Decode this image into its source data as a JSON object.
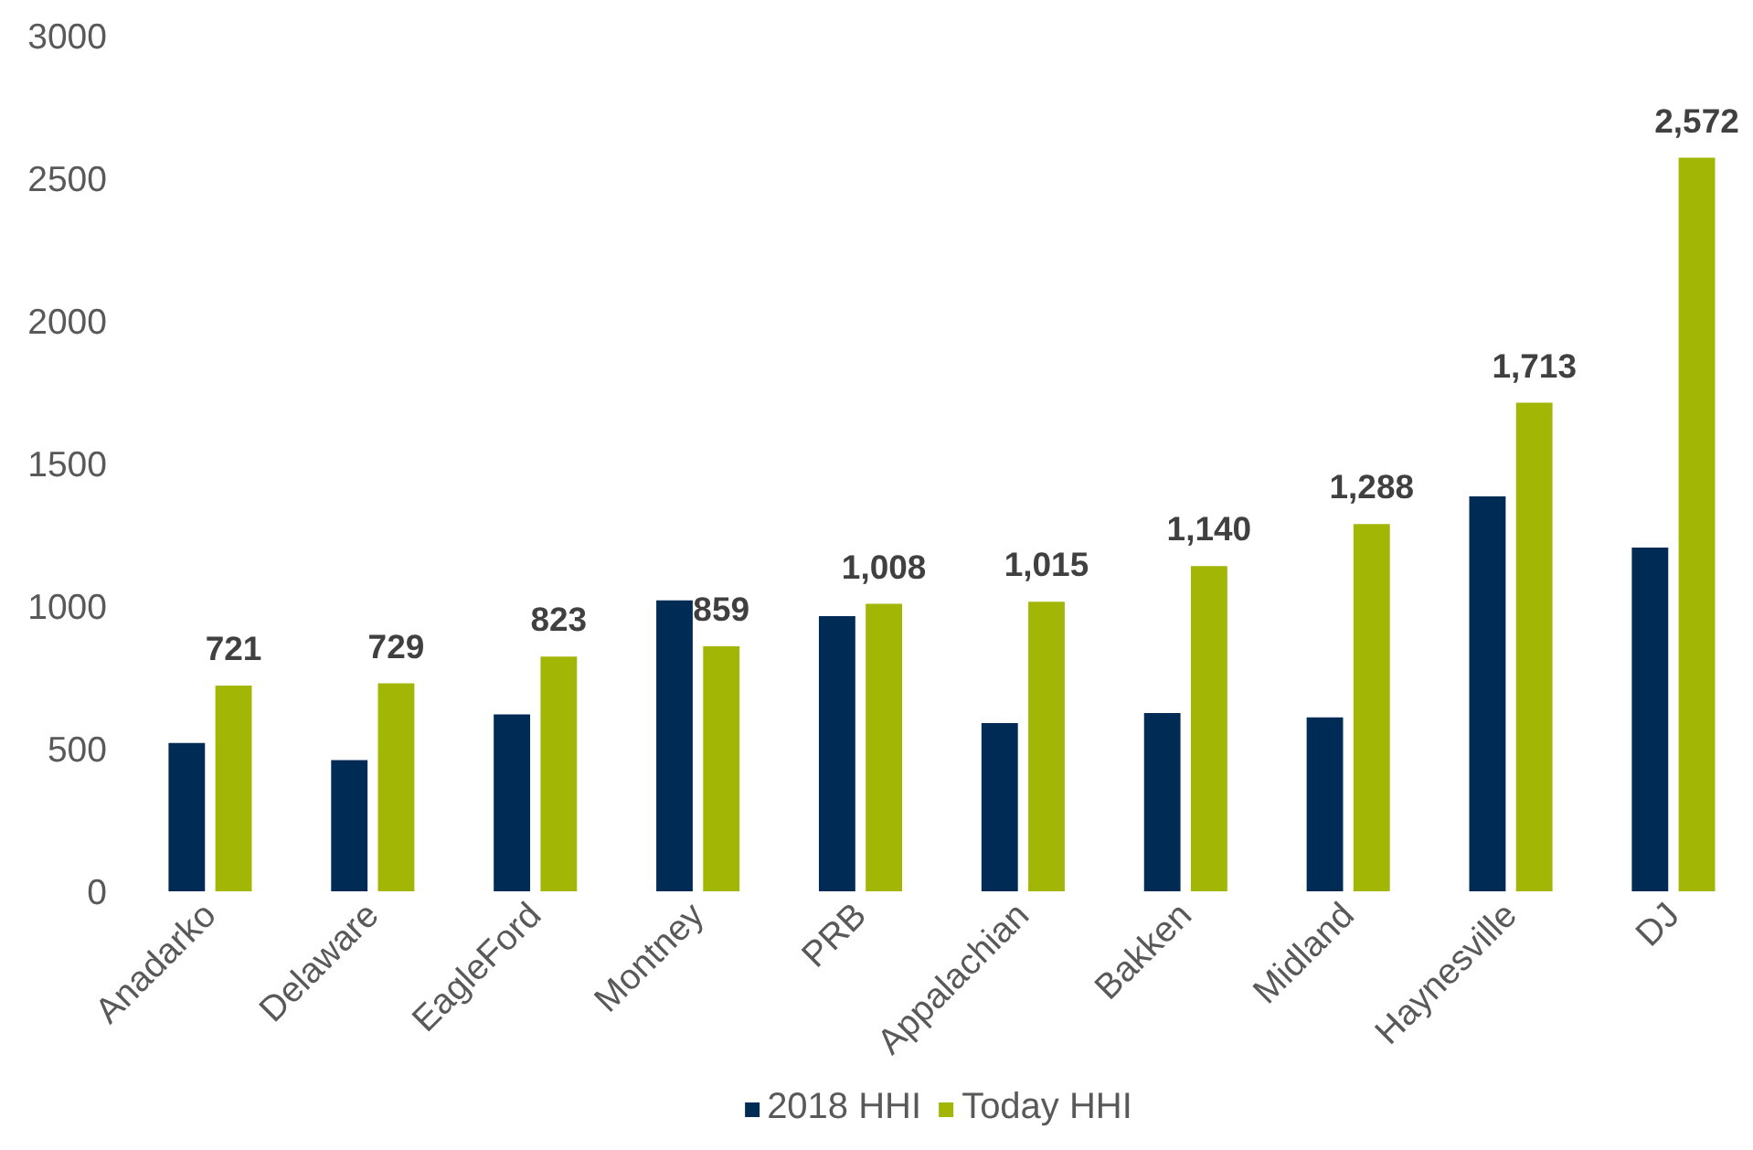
{
  "chart_data": {
    "type": "bar",
    "categories": [
      "Anadarko",
      "Delaware",
      "EagleFord",
      "Montney",
      "PRB",
      "Appalachian",
      "Bakken",
      "Midland",
      "Haynesville",
      "DJ"
    ],
    "series": [
      {
        "name": "2018 HHI",
        "color": "#002b54",
        "values": [
          520,
          460,
          620,
          1020,
          965,
          590,
          625,
          610,
          1385,
          1205
        ]
      },
      {
        "name": "Today HHI",
        "color": "#a2b606",
        "values": [
          721,
          729,
          823,
          859,
          1008,
          1015,
          1140,
          1288,
          1713,
          2572
        ],
        "value_labels": [
          "721",
          "729",
          "823",
          "859",
          "1,008",
          "1,015",
          "1,140",
          "1,288",
          "1,713",
          "2,572"
        ]
      }
    ],
    "ylim": [
      0,
      3000
    ],
    "yticks": [
      0,
      500,
      1000,
      1500,
      2000,
      2500,
      3000
    ],
    "grid": false,
    "legend": "bottom"
  }
}
